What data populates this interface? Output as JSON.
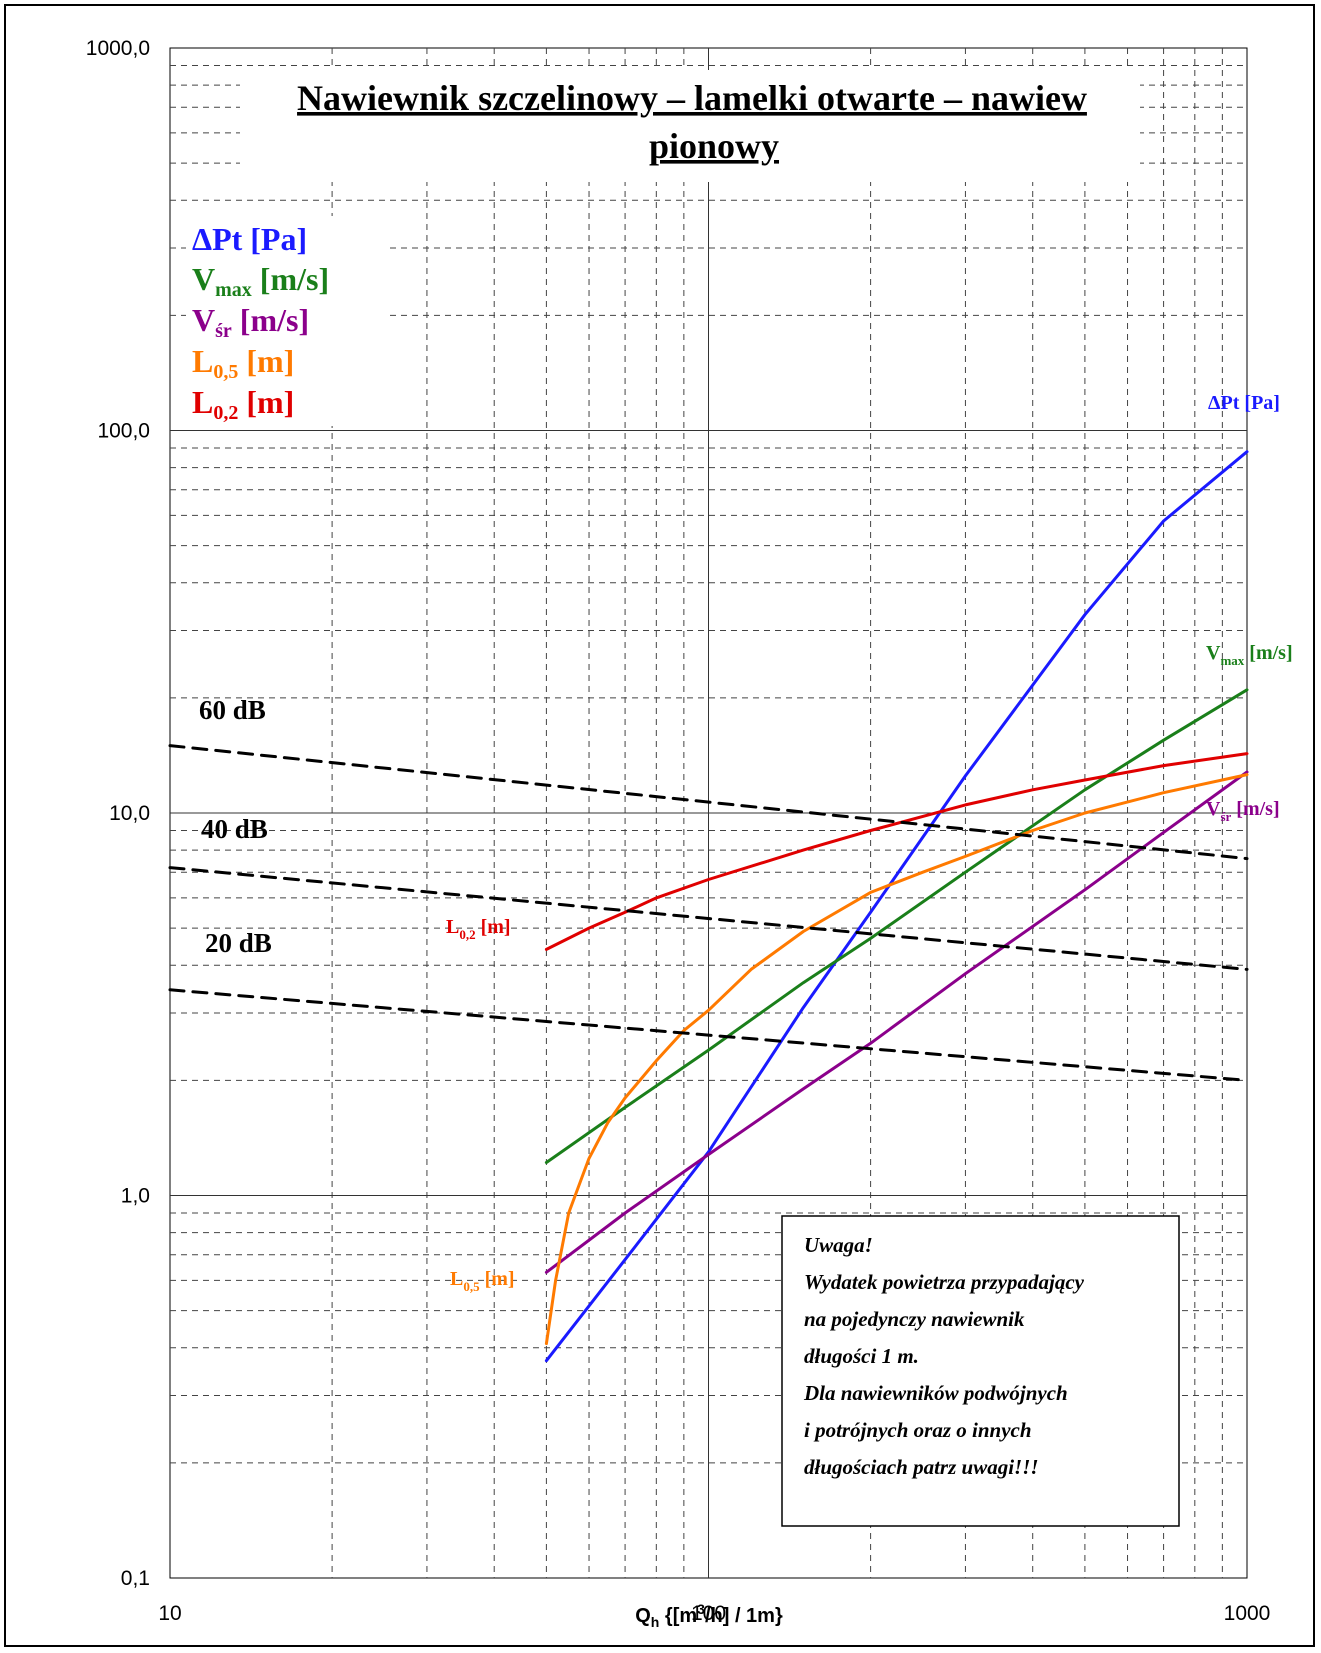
{
  "chart_data": {
    "type": "line",
    "title_line1": "Nawiewnik szczelinowy – lamelki otwarte – nawiew",
    "title_line2": "pionowy",
    "x_scale": "log",
    "y_scale": "log",
    "xlim": [
      10,
      1000
    ],
    "ylim": [
      0.1,
      1000
    ],
    "grid": true,
    "x_ticks": [
      "10",
      "100",
      "1000"
    ],
    "y_ticks": [
      "0,1",
      "1,0",
      "10,0",
      "100,0",
      "1000,0"
    ],
    "xlabel": {
      "main": "Q",
      "sub": "h",
      "rest1": " {[m",
      "sup": "3",
      "rest2": "/h] / 1m}"
    },
    "legend_entries": [
      {
        "main": "ΔPt",
        "sub": "",
        "unit": " [Pa]",
        "color": "#1a1aff"
      },
      {
        "main": "V",
        "sub": "max",
        "unit": " [m/s]",
        "color": "#1a7f1a"
      },
      {
        "main": "V",
        "sub": "śr",
        "unit": " [m/s]",
        "color": "#8b008b"
      },
      {
        "main": "L",
        "sub": "0,5",
        "unit": " [m]",
        "color": "#ff7a00"
      },
      {
        "main": "L",
        "sub": "0,2",
        "unit": " [m]",
        "color": "#e00000"
      }
    ],
    "series": [
      {
        "name": "ΔPt [Pa]",
        "color": "#1a1aff",
        "x": [
          50,
          70,
          100,
          150,
          200,
          300,
          500,
          700,
          1000
        ],
        "y": [
          0.37,
          0.68,
          1.3,
          3.1,
          5.5,
          12.5,
          33,
          58,
          88
        ]
      },
      {
        "name": "Vmax [m/s]",
        "color": "#1a7f1a",
        "x": [
          50,
          70,
          100,
          150,
          200,
          300,
          500,
          700,
          1000
        ],
        "y": [
          1.22,
          1.7,
          2.4,
          3.6,
          4.7,
          7.0,
          11.5,
          15.5,
          21
        ]
      },
      {
        "name": "Vśr [m/s]",
        "color": "#8b008b",
        "x": [
          50,
          70,
          100,
          150,
          200,
          300,
          500,
          700,
          1000
        ],
        "y": [
          0.63,
          0.9,
          1.28,
          1.9,
          2.5,
          3.8,
          6.3,
          8.9,
          12.8
        ]
      },
      {
        "name": "L0,5 [m]",
        "color": "#ff7a00",
        "x": [
          50,
          52,
          55,
          60,
          65,
          70,
          80,
          90,
          100,
          120,
          150,
          200,
          250,
          300,
          400,
          500,
          700,
          1000
        ],
        "y": [
          0.41,
          0.6,
          0.9,
          1.25,
          1.55,
          1.8,
          2.25,
          2.7,
          3.05,
          3.9,
          4.9,
          6.2,
          7.0,
          7.7,
          9.0,
          10.0,
          11.3,
          12.6
        ]
      },
      {
        "name": "L0,2 [m]",
        "color": "#e00000",
        "x": [
          50,
          60,
          70,
          80,
          100,
          150,
          200,
          300,
          400,
          500,
          700,
          1000
        ],
        "y": [
          4.4,
          5.0,
          5.5,
          6.0,
          6.7,
          8.0,
          9.0,
          10.5,
          11.5,
          12.2,
          13.3,
          14.3
        ]
      },
      {
        "name": "60 dB",
        "color": "#000000",
        "dashed": true,
        "x": [
          10,
          1000
        ],
        "y": [
          15.0,
          7.6
        ]
      },
      {
        "name": "40 dB",
        "color": "#000000",
        "dashed": true,
        "x": [
          10,
          1000
        ],
        "y": [
          7.2,
          3.9
        ]
      },
      {
        "name": "20 dB",
        "color": "#000000",
        "dashed": true,
        "x": [
          10,
          1000
        ],
        "y": [
          3.45,
          2.0
        ]
      }
    ],
    "curve_end_labels": [
      {
        "main": "ΔPt",
        "sub": "",
        "unit": " [Pa]",
        "color": "#1a1aff",
        "at": "right-end"
      },
      {
        "main": "V",
        "sub": "max",
        "unit": " [m/s]",
        "color": "#1a7f1a",
        "at": "right-end"
      },
      {
        "main": "V",
        "sub": "śr",
        "unit": " [m/s]",
        "color": "#8b008b",
        "at": "right-end"
      },
      {
        "main": "L",
        "sub": "0,2",
        "unit": " [m]",
        "color": "#e00000",
        "at": "left-end"
      },
      {
        "main": "L",
        "sub": "0,5",
        "unit": " [m]",
        "color": "#ff7a00",
        "at": "left-end"
      }
    ],
    "db_labels": [
      "60 dB",
      "40 dB",
      "20 dB"
    ],
    "note_lines": [
      "Uwaga!",
      "Wydatek powietrza przypadający",
      "na pojedynczy nawiewnik",
      "długości 1 m.",
      "Dla nawiewników podwójnych",
      "i potrójnych oraz o innych",
      "długościach patrz uwagi!!!"
    ]
  }
}
